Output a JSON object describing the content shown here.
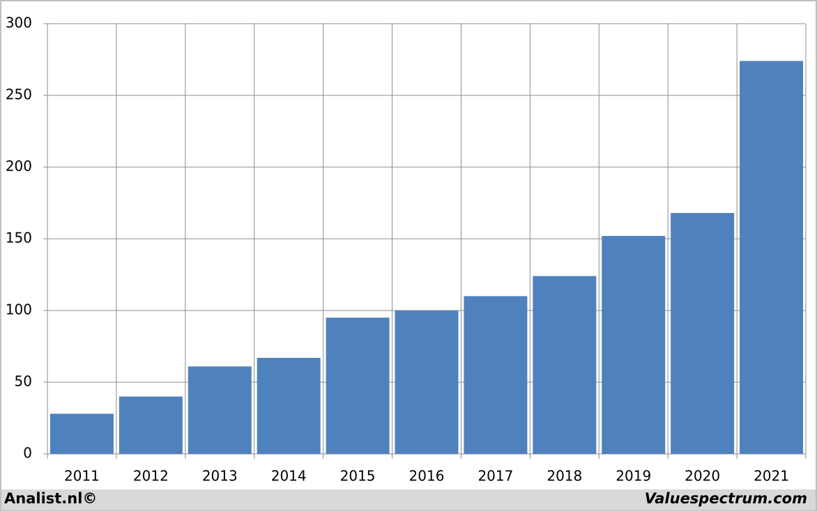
{
  "chart_data": {
    "type": "bar",
    "categories": [
      "2011",
      "2012",
      "2013",
      "2014",
      "2015",
      "2016",
      "2017",
      "2018",
      "2019",
      "2020",
      "2021"
    ],
    "values": [
      28,
      40,
      61,
      67,
      95,
      100,
      110,
      124,
      152,
      168,
      274
    ],
    "color": "#4f81bd",
    "ylim": [
      0,
      300
    ],
    "yticks": [
      0,
      50,
      100,
      150,
      200,
      250,
      300
    ],
    "grid": true
  },
  "footer": {
    "left": "Analist.nl©",
    "right": "Valuespectrum.com"
  }
}
